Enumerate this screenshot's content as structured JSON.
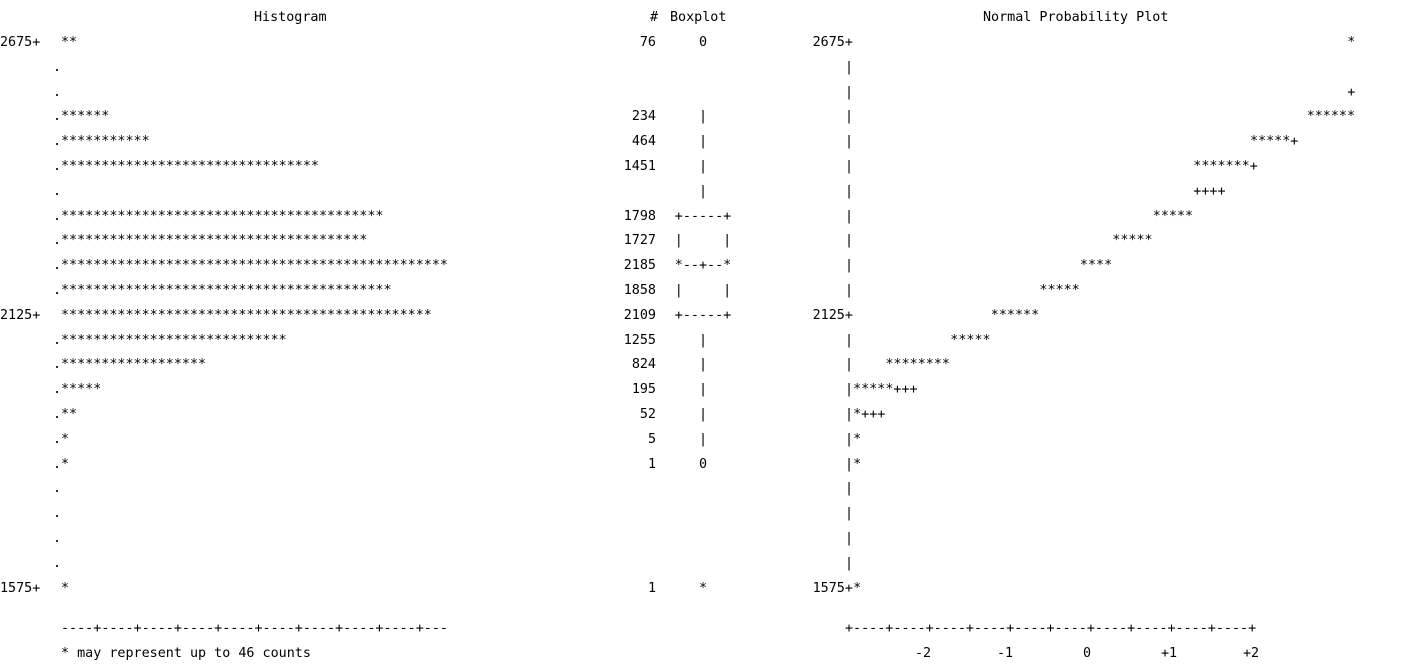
{
  "chart_data": [
    {
      "type": "bar",
      "orientation": "horizontal",
      "title": "Histogram",
      "count_header": "#",
      "yticks": [
        "2675+",
        "2125+",
        "1575+"
      ],
      "bins": [
        {
          "lead": "2675+",
          "bar": "**",
          "count": "76"
        },
        {
          "lead": ".",
          "bar": "",
          "count": ""
        },
        {
          "lead": ".",
          "bar": "",
          "count": ""
        },
        {
          "lead": ".",
          "bar": "******",
          "count": "234"
        },
        {
          "lead": ".",
          "bar": "***********",
          "count": "464"
        },
        {
          "lead": ".",
          "bar": "********************************",
          "count": "1451"
        },
        {
          "lead": ".",
          "bar": "",
          "count": ""
        },
        {
          "lead": ".",
          "bar": "****************************************",
          "count": "1798"
        },
        {
          "lead": ".",
          "bar": "**************************************",
          "count": "1727"
        },
        {
          "lead": ".",
          "bar": "************************************************",
          "count": "2185"
        },
        {
          "lead": ".",
          "bar": "*****************************************",
          "count": "1858"
        },
        {
          "lead": "2125+",
          "bar": "**********************************************",
          "count": "2109"
        },
        {
          "lead": ".",
          "bar": "****************************",
          "count": "1255"
        },
        {
          "lead": ".",
          "bar": "******************",
          "count": "824"
        },
        {
          "lead": ".",
          "bar": "*****",
          "count": "195"
        },
        {
          "lead": ".",
          "bar": "**",
          "count": "52"
        },
        {
          "lead": ".",
          "bar": "*",
          "count": "5"
        },
        {
          "lead": ".",
          "bar": "*",
          "count": "1"
        },
        {
          "lead": ".",
          "bar": "",
          "count": ""
        },
        {
          "lead": ".",
          "bar": "",
          "count": ""
        },
        {
          "lead": ".",
          "bar": "",
          "count": ""
        },
        {
          "lead": ".",
          "bar": "",
          "count": ""
        },
        {
          "lead": "1575+",
          "bar": "*",
          "count": "1"
        }
      ],
      "x_axis_line": "----+----+----+----+----+----+----+----+----+---",
      "footnote": "* may represent up to 46 counts"
    },
    {
      "type": "boxplot",
      "title": "Boxplot",
      "rows": [
        "0",
        "",
        "",
        "|",
        "|",
        "|",
        "|",
        "+-----+",
        "|     |",
        "*--+--*",
        "|     |",
        "+-----+",
        "|",
        "|",
        "|",
        "|",
        "|",
        "0",
        "",
        "",
        "",
        "",
        "*"
      ]
    },
    {
      "type": "scatter",
      "title": "Normal Probability Plot",
      "yticks": [
        "2675+",
        "2125+",
        "1575+"
      ],
      "x_axis_line": "+----+----+----+----+----+----+----+----+----+----+",
      "xticks": [
        "-2",
        "-1",
        "0",
        "+1",
        "+2"
      ],
      "rows": [
        {
          "lead": "2675+",
          "points": [
            {
              "col": 62,
              "text": "*"
            }
          ]
        },
        {
          "lead": "|",
          "points": []
        },
        {
          "lead": "|",
          "points": [
            {
              "col": 62,
              "text": "+"
            }
          ]
        },
        {
          "lead": "|",
          "points": [
            {
              "col": 57,
              "text": "******"
            }
          ]
        },
        {
          "lead": "|",
          "points": [
            {
              "col": 50,
              "text": "*****+"
            }
          ]
        },
        {
          "lead": "|",
          "points": [
            {
              "col": 43,
              "text": "*******+"
            }
          ]
        },
        {
          "lead": "|",
          "points": [
            {
              "col": 43,
              "text": "++++"
            }
          ]
        },
        {
          "lead": "|",
          "points": [
            {
              "col": 38,
              "text": "*****"
            }
          ]
        },
        {
          "lead": "|",
          "points": [
            {
              "col": 33,
              "text": "*****"
            }
          ]
        },
        {
          "lead": "|",
          "points": [
            {
              "col": 29,
              "text": "****"
            }
          ]
        },
        {
          "lead": "|",
          "points": [
            {
              "col": 24,
              "text": "*****"
            }
          ]
        },
        {
          "lead": "2125+",
          "points": [
            {
              "col": 18,
              "text": "******"
            }
          ]
        },
        {
          "lead": "|",
          "points": [
            {
              "col": 13,
              "text": "*****"
            }
          ]
        },
        {
          "lead": "|",
          "points": [
            {
              "col": 5,
              "text": "********"
            }
          ]
        },
        {
          "lead": "|",
          "points": [
            {
              "col": 1,
              "text": "*****+++"
            }
          ]
        },
        {
          "lead": "|",
          "points": [
            {
              "col": 1,
              "text": "*+++"
            }
          ]
        },
        {
          "lead": "|",
          "points": [
            {
              "col": 1,
              "text": "*"
            }
          ]
        },
        {
          "lead": "|",
          "points": [
            {
              "col": 1,
              "text": "*"
            }
          ]
        },
        {
          "lead": "|",
          "points": []
        },
        {
          "lead": "|",
          "points": []
        },
        {
          "lead": "|",
          "points": []
        },
        {
          "lead": "|",
          "points": []
        },
        {
          "lead": "1575+",
          "points": [
            {
              "col": 1,
              "text": "*"
            }
          ]
        }
      ]
    }
  ]
}
